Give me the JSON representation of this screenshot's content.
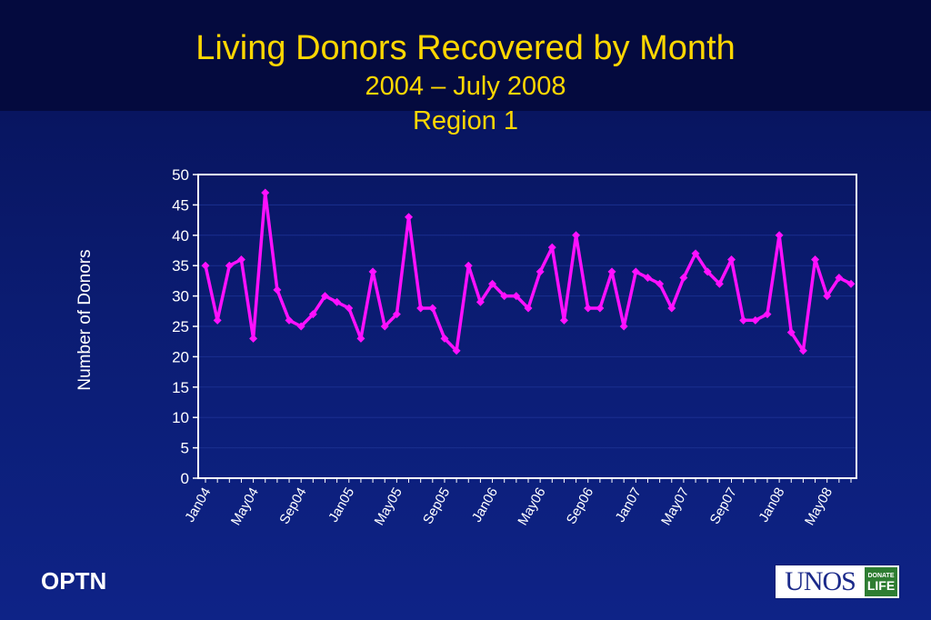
{
  "footer": {
    "org": "OPTN"
  },
  "logo": {
    "word": "UNOS",
    "badge_top": "DONATE",
    "badge_bottom": "LIFE"
  },
  "colors": {
    "title": "#ffd700",
    "series": "#ff10ff",
    "plot_bg": "#0b1c72",
    "text": "#ffffff"
  },
  "chart_data": {
    "type": "line",
    "title": "Living Donors Recovered by Month",
    "subtitle": "2004 – July 2008",
    "subtitle2": "Region 1",
    "xlabel": "",
    "ylabel": "Number of Donors",
    "ylim": [
      0,
      50
    ],
    "yticks": [
      0,
      5,
      10,
      15,
      20,
      25,
      30,
      35,
      40,
      45,
      50
    ],
    "grid": true,
    "legend": "none",
    "x_tick_labels": [
      "Jan04",
      "May04",
      "Sep04",
      "Jan05",
      "May05",
      "Sep05",
      "Jan06",
      "May06",
      "Sep06",
      "Jan07",
      "May07",
      "Sep07",
      "Jan08",
      "May08"
    ],
    "x_tick_every": 4,
    "series": [
      {
        "values": [
          35,
          26,
          35,
          36,
          23,
          47,
          31,
          26,
          25,
          27,
          30,
          29,
          28,
          23,
          34,
          25,
          27,
          43,
          28,
          28,
          23,
          21,
          35,
          29,
          32,
          30,
          30,
          28,
          34,
          38,
          26,
          40,
          28,
          28,
          34,
          25,
          34,
          33,
          32,
          28,
          33,
          37,
          34,
          32,
          36,
          26,
          26,
          27,
          40,
          24,
          21,
          36,
          30,
          33,
          32
        ]
      }
    ]
  }
}
